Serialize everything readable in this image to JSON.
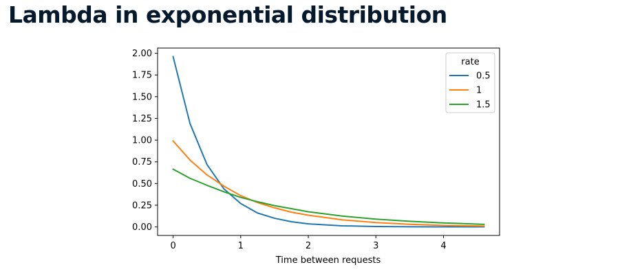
{
  "page": {
    "title": "Lambda in exponential distribution"
  },
  "chart_data": {
    "type": "line",
    "title": "",
    "xlabel": "Time between requests",
    "ylabel": "",
    "xlim": [
      -0.23,
      4.83
    ],
    "ylim": [
      -0.098,
      2.06
    ],
    "x_ticks": [
      0,
      1,
      2,
      3,
      4
    ],
    "x_tick_labels": [
      "0",
      "1",
      "2",
      "3",
      "4"
    ],
    "y_ticks": [
      0,
      0.25,
      0.5,
      0.75,
      1.0,
      1.25,
      1.5,
      1.75,
      2.0
    ],
    "y_tick_labels": [
      "0.00",
      "0.25",
      "0.50",
      "0.75",
      "1.00",
      "1.25",
      "1.50",
      "1.75",
      "2.00"
    ],
    "grid": false,
    "legend": {
      "title": "rate",
      "placement": "top-right"
    },
    "series": [
      {
        "name": "0.5",
        "color": "#1f77b4",
        "x": [
          0,
          0.25,
          0.5,
          0.75,
          1.0,
          1.25,
          1.5,
          1.75,
          2.0,
          2.5,
          3.0,
          3.5,
          4.0,
          4.6
        ],
        "y": [
          1.96,
          1.19,
          0.72,
          0.44,
          0.27,
          0.16,
          0.1,
          0.06,
          0.035,
          0.013,
          0.005,
          0.002,
          0.001,
          0.0003
        ]
      },
      {
        "name": "1",
        "color": "#ff7f0e",
        "x": [
          0,
          0.25,
          0.5,
          0.75,
          1.0,
          1.25,
          1.5,
          1.75,
          2.0,
          2.5,
          3.0,
          3.5,
          4.0,
          4.6
        ],
        "y": [
          0.99,
          0.77,
          0.6,
          0.47,
          0.36,
          0.28,
          0.22,
          0.17,
          0.135,
          0.082,
          0.05,
          0.03,
          0.018,
          0.01
        ]
      },
      {
        "name": "1.5",
        "color": "#2ca02c",
        "x": [
          0,
          0.25,
          0.5,
          0.75,
          1.0,
          1.25,
          1.5,
          1.75,
          2.0,
          2.5,
          3.0,
          3.5,
          4.0,
          4.6
        ],
        "y": [
          0.665,
          0.56,
          0.48,
          0.405,
          0.34,
          0.29,
          0.245,
          0.21,
          0.175,
          0.125,
          0.09,
          0.065,
          0.046,
          0.03
        ]
      }
    ]
  }
}
